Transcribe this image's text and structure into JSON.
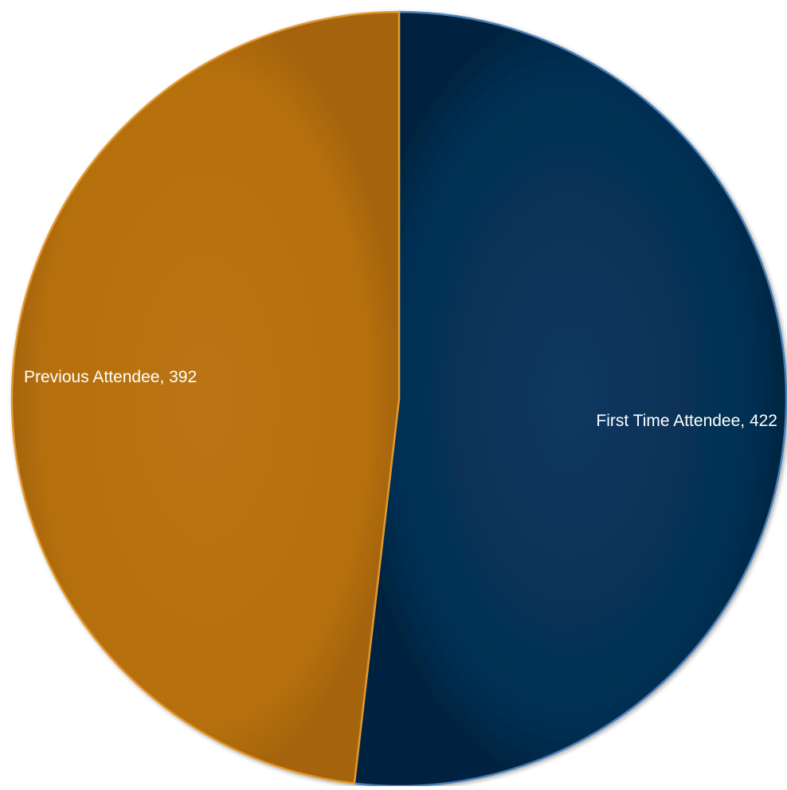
{
  "chart_data": {
    "type": "pie",
    "series": [
      {
        "values": [
          422,
          392
        ],
        "categories": [
          "First Time Attendee",
          "Previous Attendee"
        ]
      }
    ],
    "slices": [
      {
        "label": "First Time Attendee",
        "value": 422,
        "color": "#052f52",
        "edge": "#4a7fb8",
        "data_label": "First Time Attendee, 422"
      },
      {
        "label": "Previous Attendee",
        "value": 392,
        "color": "#b56f10",
        "edge": "#e3982e",
        "data_label": "Previous Attendee, 392"
      }
    ],
    "start_angle_deg": 0,
    "direction": "clockwise",
    "data_labels": true,
    "legend": "none",
    "title": ""
  }
}
